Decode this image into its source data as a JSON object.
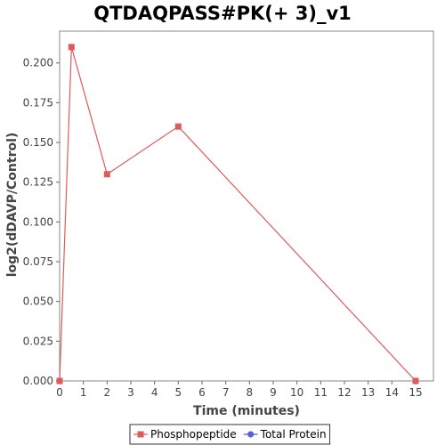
{
  "chart_data": {
    "type": "line",
    "title": "QTDAQPASS#PK(+ 3)_v1",
    "xlabel": "Time (minutes)",
    "ylabel": "log2(dDAVP/Control)",
    "xlim": [
      0,
      15.75
    ],
    "ylim": [
      0,
      0.22
    ],
    "xticks": [
      0,
      1,
      2,
      3,
      4,
      5,
      6,
      7,
      8,
      9,
      10,
      11,
      12,
      13,
      14,
      15
    ],
    "yticks": [
      0.0,
      0.025,
      0.05,
      0.075,
      0.1,
      0.125,
      0.15,
      0.175,
      0.2
    ],
    "ytick_labels": [
      "0.000",
      "0.025",
      "0.050",
      "0.075",
      "0.100",
      "0.125",
      "0.150",
      "0.175",
      "0.200"
    ],
    "grid": false,
    "legend_position": "bottom",
    "series": [
      {
        "name": "Phosphopeptide",
        "color": "#e05a5a",
        "marker": "square",
        "x": [
          0,
          0.5,
          2,
          5,
          15
        ],
        "y": [
          0.0,
          0.21,
          0.13,
          0.16,
          0.0
        ]
      },
      {
        "name": "Total Protein",
        "color": "#5a5ae0",
        "marker": "circle",
        "x": [],
        "y": []
      }
    ]
  }
}
